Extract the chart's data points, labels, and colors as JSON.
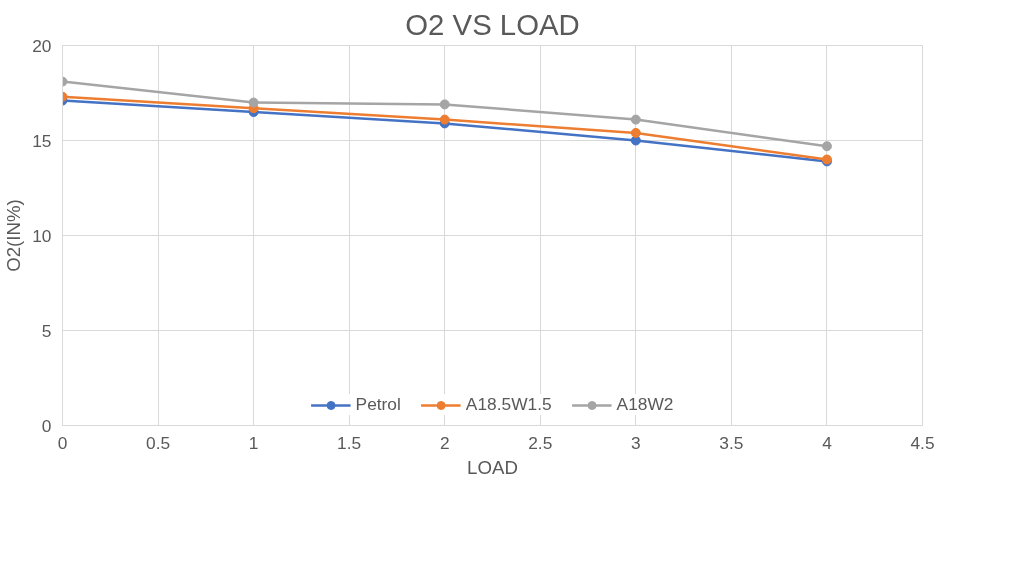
{
  "chart_data": {
    "type": "line",
    "title": "O2 VS LOAD",
    "xlabel": "LOAD",
    "ylabel": "O2(IN%)",
    "x": [
      0,
      1,
      2,
      3,
      4
    ],
    "series": [
      {
        "name": "Petrol",
        "color": "#4472c4",
        "values": [
          17.1,
          16.5,
          15.9,
          15.0,
          13.9
        ]
      },
      {
        "name": "A18.5W1.5",
        "color": "#ed7d31",
        "values": [
          17.3,
          16.7,
          16.1,
          15.4,
          14.0
        ]
      },
      {
        "name": "A18W2",
        "color": "#a5a5a5",
        "values": [
          18.1,
          17.0,
          16.9,
          16.1,
          14.7
        ]
      }
    ],
    "xlim": [
      0,
      4.5
    ],
    "xticks": [
      0,
      0.5,
      1,
      1.5,
      2,
      2.5,
      3,
      3.5,
      4,
      4.5
    ],
    "ylim": [
      0,
      20
    ],
    "yticks": [
      0,
      5,
      10,
      15,
      20
    ],
    "grid": true,
    "legend": "bottom",
    "marker": "circle",
    "line_style": "solid"
  }
}
